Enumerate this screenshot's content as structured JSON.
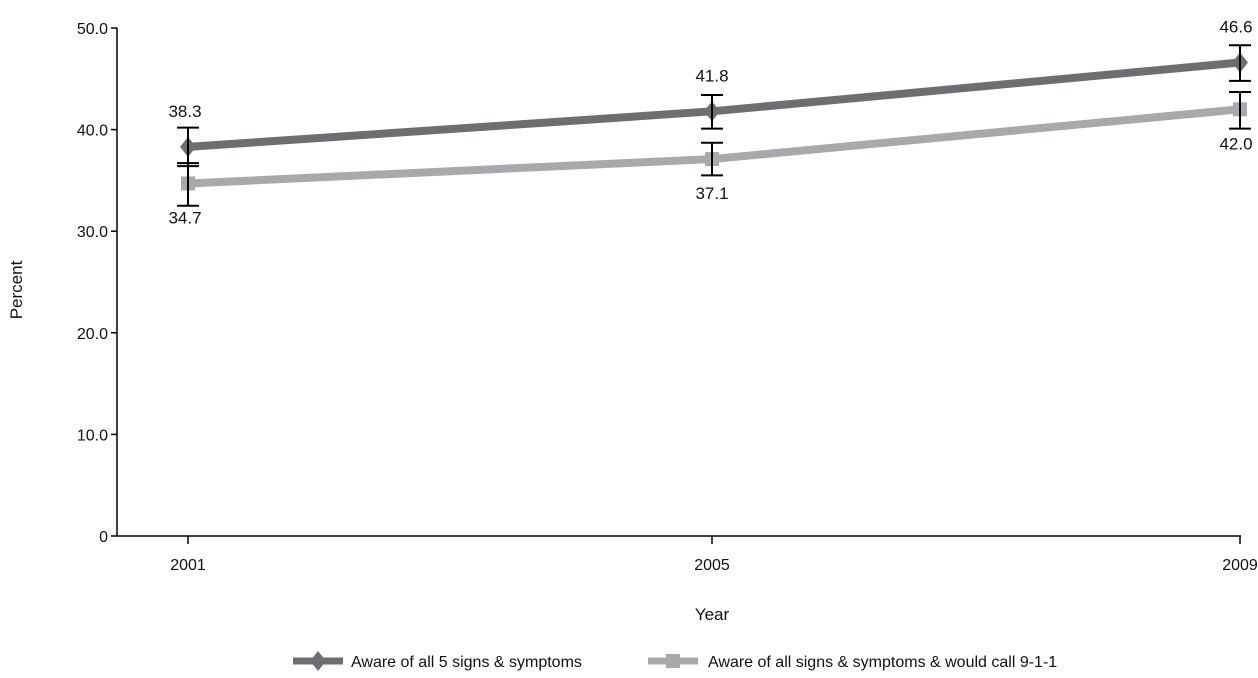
{
  "chart_data": {
    "type": "line",
    "title": "",
    "xlabel": "Year",
    "ylabel": "Percent",
    "x": [
      "2001",
      "2005",
      "2009"
    ],
    "ylim": [
      0,
      50
    ],
    "y_ticks": [
      "0",
      "10.0",
      "20.0",
      "30.0",
      "40.0",
      "50.0"
    ],
    "y_tick_values": [
      0,
      10,
      20,
      30,
      40,
      50
    ],
    "grid": false,
    "legend_position": "bottom",
    "series": [
      {
        "name": "Aware of all 5 signs & symptoms",
        "values": [
          38.3,
          41.8,
          46.6
        ],
        "labels": [
          "38.3",
          "41.8",
          "46.6"
        ],
        "error_low": [
          36.4,
          40.1,
          44.8
        ],
        "error_high": [
          40.2,
          43.4,
          48.3
        ],
        "color": "#6d6e71",
        "marker": "diamond"
      },
      {
        "name": "Aware of all signs & symptoms & would call 9-1-1",
        "values": [
          34.7,
          37.1,
          42.0
        ],
        "labels": [
          "34.7",
          "37.1",
          "42.0"
        ],
        "error_low": [
          32.5,
          35.5,
          40.1
        ],
        "error_high": [
          36.7,
          38.7,
          43.7
        ],
        "color": "#a7a9ac",
        "marker": "square"
      }
    ]
  }
}
